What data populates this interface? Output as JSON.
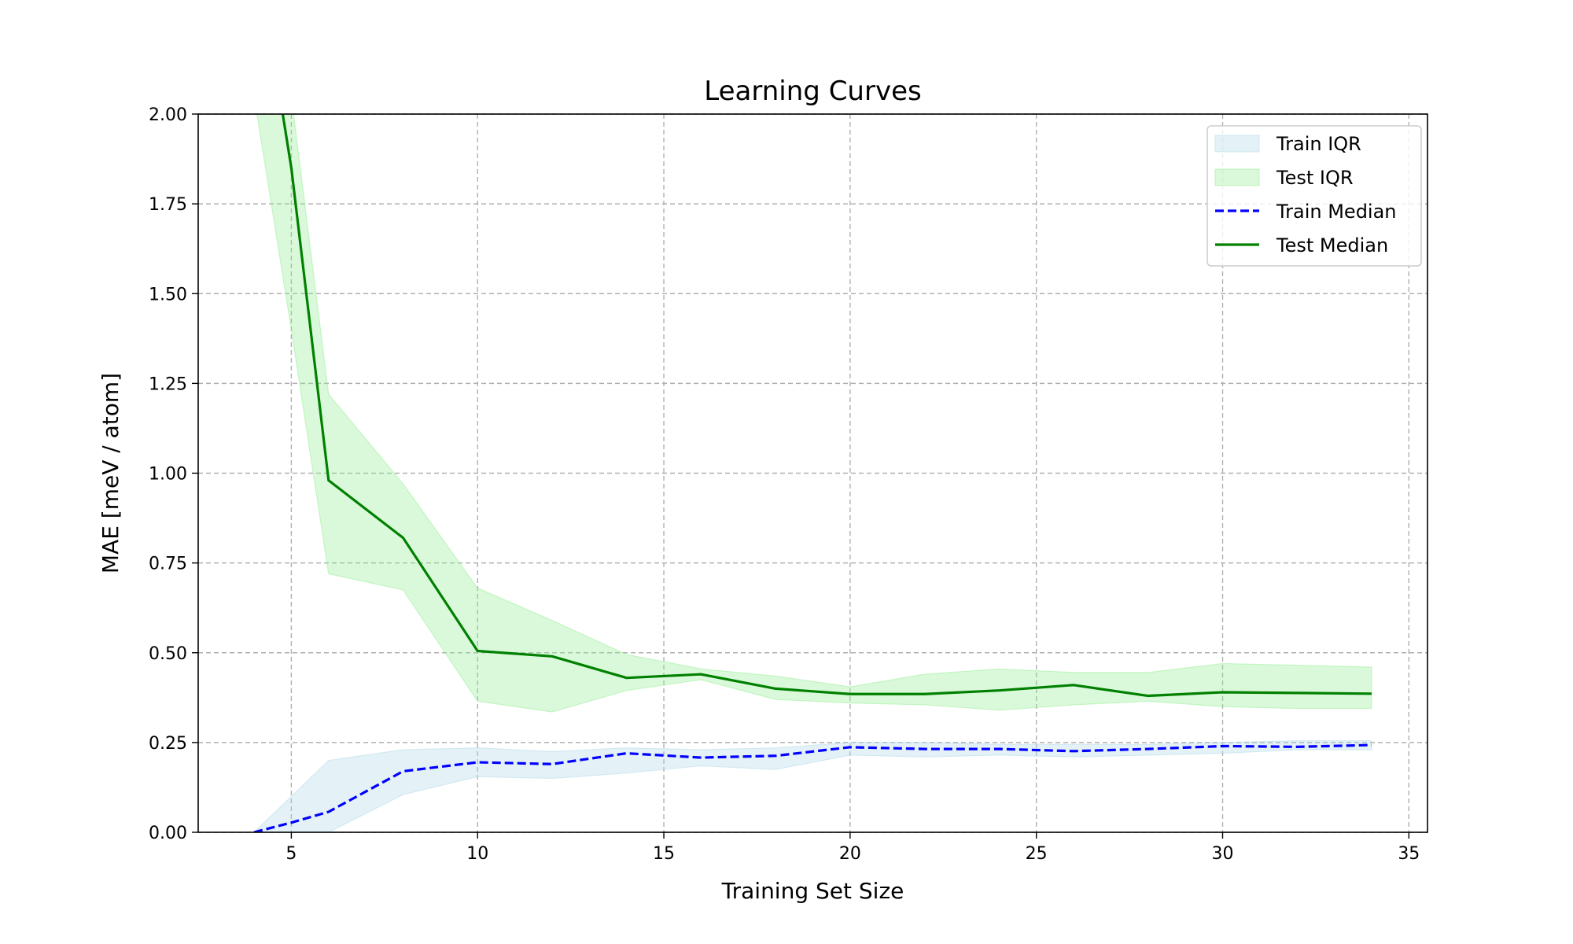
{
  "chart_data": {
    "type": "line",
    "title": "Learning Curves",
    "xlabel": "Training Set Size",
    "ylabel": "MAE [meV / atom]",
    "xlim": [
      2.5,
      35.5
    ],
    "ylim": [
      0,
      2.0
    ],
    "xticks": [
      5,
      10,
      15,
      20,
      25,
      30,
      35
    ],
    "yticks": [
      0.0,
      0.25,
      0.5,
      0.75,
      1.0,
      1.25,
      1.5,
      1.75,
      2.0
    ],
    "xtick_labels": [
      "5",
      "10",
      "15",
      "20",
      "25",
      "30",
      "35"
    ],
    "ytick_labels": [
      "0.00",
      "0.25",
      "0.50",
      "0.75",
      "1.00",
      "1.25",
      "1.50",
      "1.75",
      "2.00"
    ],
    "grid": true,
    "legend_position": "top-right",
    "x": [
      4,
      5,
      6,
      8,
      10,
      12,
      14,
      16,
      18,
      20,
      22,
      24,
      26,
      28,
      30,
      32,
      34
    ],
    "bands": [
      {
        "name": "Train IQR",
        "color": "#add8e6",
        "lower": [
          0.0,
          0.0,
          0.0,
          0.105,
          0.155,
          0.15,
          0.165,
          0.185,
          0.175,
          0.215,
          0.21,
          0.215,
          0.21,
          0.215,
          0.22,
          0.23,
          0.23
        ],
        "upper": [
          0.0,
          0.1,
          0.2,
          0.23,
          0.235,
          0.225,
          0.235,
          0.23,
          0.235,
          0.25,
          0.25,
          0.245,
          0.245,
          0.245,
          0.25,
          0.255,
          0.255
        ]
      },
      {
        "name": "Test IQR",
        "color": "#90ee90",
        "lower": [
          2.05,
          1.4,
          0.72,
          0.675,
          0.365,
          0.335,
          0.395,
          0.425,
          0.37,
          0.36,
          0.355,
          0.34,
          0.355,
          0.365,
          0.35,
          0.345,
          0.345
        ],
        "upper": [
          2.05,
          2.05,
          1.22,
          0.97,
          0.68,
          0.59,
          0.495,
          0.455,
          0.435,
          0.405,
          0.44,
          0.455,
          0.445,
          0.445,
          0.47,
          0.465,
          0.46
        ]
      }
    ],
    "series": [
      {
        "name": "Train Median",
        "color": "#0000ff",
        "style": "dashed",
        "values": [
          0.0,
          0.027,
          0.057,
          0.17,
          0.195,
          0.19,
          0.22,
          0.208,
          0.213,
          0.237,
          0.232,
          0.232,
          0.226,
          0.232,
          0.24,
          0.238,
          0.243
        ]
      },
      {
        "name": "Test Median",
        "color": "#008000",
        "style": "solid",
        "values": [
          2.5,
          1.85,
          0.98,
          0.82,
          0.505,
          0.49,
          0.43,
          0.44,
          0.4,
          0.385,
          0.385,
          0.395,
          0.41,
          0.38,
          0.39,
          0.388,
          0.386
        ]
      }
    ]
  }
}
